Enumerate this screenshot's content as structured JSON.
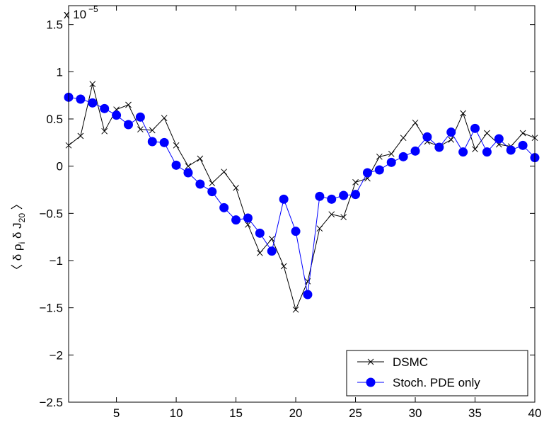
{
  "chart_data": {
    "type": "line",
    "ylabel": "〈 δ ρ",
    "ylabel_sub1": "i",
    "ylabel_mid": " δ J",
    "ylabel_sub2": "20",
    "ylabel_end": " 〉",
    "multiplier_text": "x 10",
    "multiplier_exp": "−5",
    "xlim": [
      1,
      40
    ],
    "ylim": [
      -2.5,
      1.7
    ],
    "xticks": [
      5,
      10,
      15,
      20,
      25,
      30,
      35,
      40
    ],
    "xtick_labels": [
      "5",
      "10",
      "15",
      "20",
      "25",
      "30",
      "35",
      "40"
    ],
    "yticks": [
      1.5,
      1,
      0.5,
      0,
      -0.5,
      -1,
      -1.5,
      -2,
      -2.5
    ],
    "ytick_labels": [
      "1.5",
      "1",
      "0.5",
      "0",
      "−0.5",
      "−1",
      "−1.5",
      "−2",
      "−2.5"
    ],
    "grid": false,
    "legend_position": "bottom-right",
    "x": [
      1,
      2,
      3,
      4,
      5,
      6,
      7,
      8,
      9,
      10,
      11,
      12,
      13,
      14,
      15,
      16,
      17,
      18,
      19,
      20,
      21,
      22,
      23,
      24,
      25,
      26,
      27,
      28,
      29,
      30,
      31,
      32,
      33,
      34,
      35,
      36,
      37,
      38,
      39,
      40
    ],
    "series": [
      {
        "name": "DSMC",
        "color": "#000000",
        "marker": "x",
        "values": [
          0.22,
          0.32,
          0.87,
          0.37,
          0.6,
          0.65,
          0.39,
          0.38,
          0.51,
          0.22,
          0.0,
          0.08,
          -0.18,
          -0.06,
          -0.23,
          -0.62,
          -0.92,
          -0.77,
          -1.06,
          -1.52,
          -1.22,
          -0.66,
          -0.51,
          -0.54,
          -0.17,
          -0.13,
          0.1,
          0.13,
          0.3,
          0.46,
          0.26,
          0.21,
          0.28,
          0.56,
          0.18,
          0.35,
          0.23,
          0.21,
          0.35,
          0.3
        ]
      },
      {
        "name": "Stoch. PDE only",
        "color": "#0000ff",
        "marker": "circle",
        "values": [
          0.73,
          0.71,
          0.67,
          0.61,
          0.54,
          0.44,
          0.52,
          0.26,
          0.25,
          0.01,
          -0.07,
          -0.19,
          -0.27,
          -0.44,
          -0.57,
          -0.55,
          -0.71,
          -0.9,
          -0.35,
          -0.69,
          -1.36,
          -0.32,
          -0.35,
          -0.31,
          -0.3,
          -0.07,
          -0.04,
          0.04,
          0.1,
          0.16,
          0.31,
          0.2,
          0.36,
          0.15,
          0.4,
          0.15,
          0.29,
          0.17,
          0.22,
          0.09
        ]
      }
    ]
  }
}
